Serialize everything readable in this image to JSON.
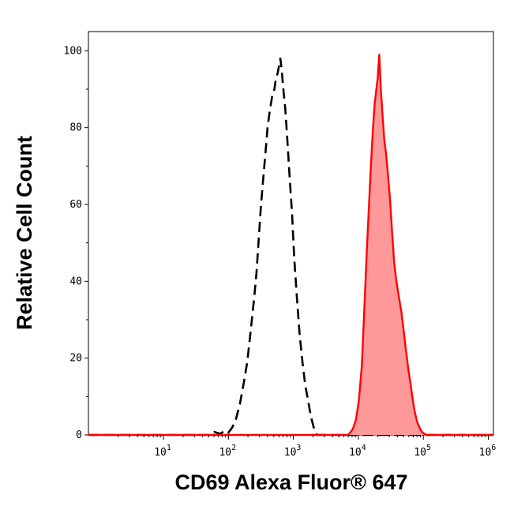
{
  "chart_data": {
    "type": "area",
    "title": "",
    "xlabel": "CD69 Alexa Fluor® 647",
    "ylabel": "Relative Cell Count",
    "x_scale": "log",
    "xlim": [
      0.7,
      1200000
    ],
    "ylim": [
      0,
      105
    ],
    "x_ticks": [
      {
        "base": "10",
        "exp": "1",
        "value": 10
      },
      {
        "base": "10",
        "exp": "2",
        "value": 100
      },
      {
        "base": "10",
        "exp": "3",
        "value": 1000
      },
      {
        "base": "10",
        "exp": "4",
        "value": 10000
      },
      {
        "base": "10",
        "exp": "5",
        "value": 100000
      },
      {
        "base": "10",
        "exp": "6",
        "value": 1000000
      }
    ],
    "y_ticks": [
      {
        "label": "0",
        "value": 0
      },
      {
        "label": "20",
        "value": 20
      },
      {
        "label": "40",
        "value": 40
      },
      {
        "label": "60",
        "value": 60
      },
      {
        "label": "80",
        "value": 80
      },
      {
        "label": "100",
        "value": 100
      }
    ],
    "grid": false,
    "legend": "none",
    "series": [
      {
        "style": "dashed",
        "color": "#000000",
        "fill": "none",
        "points": [
          [
            0.7,
            0
          ],
          [
            50,
            0
          ],
          [
            60,
            0.8
          ],
          [
            75,
            0.3
          ],
          [
            90,
            1.2
          ],
          [
            100,
            0.6
          ],
          [
            115,
            2
          ],
          [
            130,
            4
          ],
          [
            150,
            8
          ],
          [
            170,
            13
          ],
          [
            195,
            19
          ],
          [
            220,
            27
          ],
          [
            250,
            36
          ],
          [
            270,
            42
          ],
          [
            290,
            50
          ],
          [
            315,
            59
          ],
          [
            340,
            66
          ],
          [
            370,
            73
          ],
          [
            400,
            80
          ],
          [
            430,
            84
          ],
          [
            470,
            88
          ],
          [
            510,
            90
          ],
          [
            540,
            93
          ],
          [
            570,
            94
          ],
          [
            600,
            96
          ],
          [
            630,
            98
          ],
          [
            660,
            95
          ],
          [
            700,
            90
          ],
          [
            750,
            85
          ],
          [
            800,
            78
          ],
          [
            870,
            68
          ],
          [
            950,
            58
          ],
          [
            1030,
            46
          ],
          [
            1130,
            36
          ],
          [
            1250,
            26
          ],
          [
            1380,
            19
          ],
          [
            1520,
            13
          ],
          [
            1680,
            9
          ],
          [
            1850,
            5
          ],
          [
            2050,
            2
          ],
          [
            2300,
            0
          ],
          [
            1200000,
            0
          ]
        ]
      },
      {
        "style": "solid",
        "color": "#ff0000",
        "fill": "#ff9999",
        "points": [
          [
            0.7,
            0
          ],
          [
            7000,
            0
          ],
          [
            8200,
            1.5
          ],
          [
            9200,
            4
          ],
          [
            10200,
            9
          ],
          [
            11300,
            18
          ],
          [
            12300,
            32
          ],
          [
            13400,
            47
          ],
          [
            14500,
            59
          ],
          [
            15600,
            70
          ],
          [
            16700,
            79
          ],
          [
            17800,
            86
          ],
          [
            18900,
            90
          ],
          [
            19900,
            93
          ],
          [
            21000,
            99
          ],
          [
            22200,
            90
          ],
          [
            23600,
            83
          ],
          [
            25000,
            77
          ],
          [
            26800,
            73
          ],
          [
            28500,
            68
          ],
          [
            30500,
            62
          ],
          [
            33000,
            53
          ],
          [
            35500,
            45
          ],
          [
            38500,
            40
          ],
          [
            42000,
            36
          ],
          [
            46000,
            32
          ],
          [
            50000,
            27
          ],
          [
            54000,
            22
          ],
          [
            59000,
            17
          ],
          [
            64000,
            13
          ],
          [
            69000,
            9
          ],
          [
            74000,
            6
          ],
          [
            80000,
            3.5
          ],
          [
            87000,
            2
          ],
          [
            95000,
            0.8
          ],
          [
            110000,
            0
          ],
          [
            1200000,
            0
          ]
        ]
      }
    ]
  }
}
